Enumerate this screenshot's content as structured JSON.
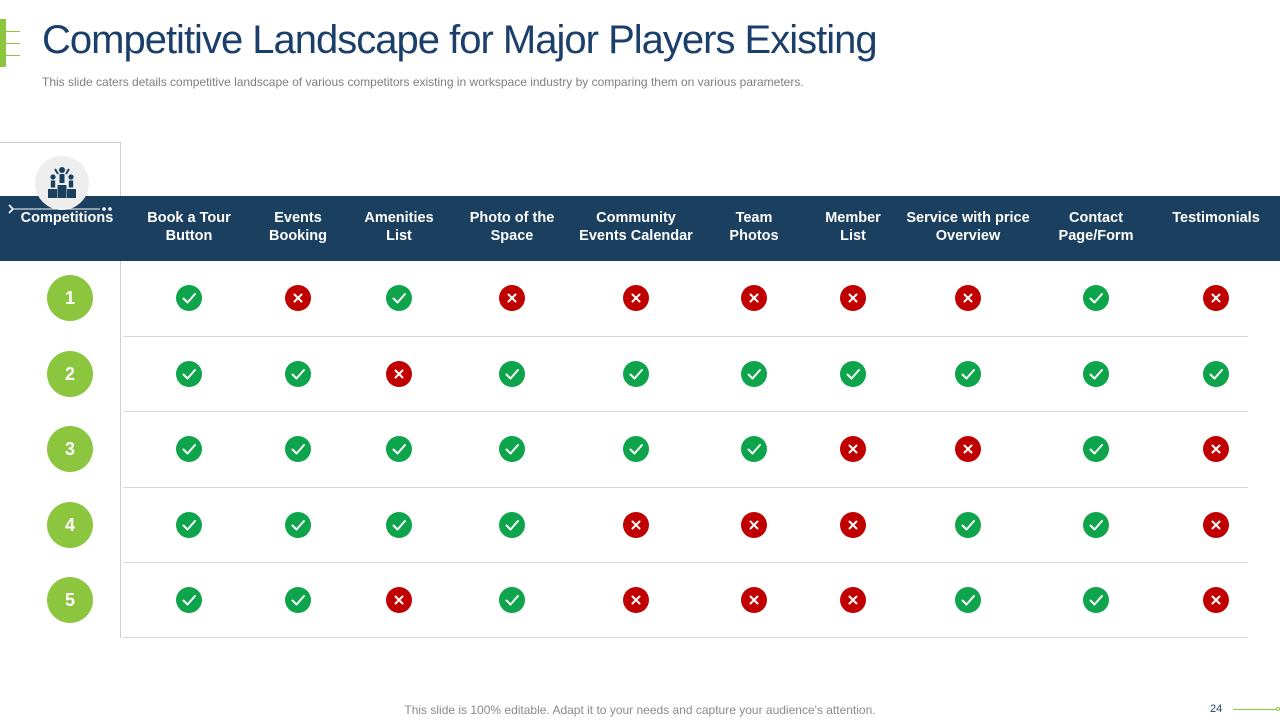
{
  "slide": {
    "title": "Competitive Landscape for Major Players Existing",
    "subtitle": "This slide caters details competitive landscape of various  competitors existing in workspace industry by comparing them on various  parameters.",
    "footer_text": "This slide is 100% editable. Adapt it to your needs and capture your audience's attention.",
    "page_number": "24"
  },
  "colors": {
    "accent_green": "#8cc63f",
    "header_navy": "#1b3f5f",
    "check_green": "#0ea44b",
    "cross_red": "#c00000"
  },
  "table": {
    "first_column_header": "Competitions",
    "columns": [
      "Book a Tour\nButton",
      "Events\nBooking",
      "Amenities\nList",
      "Photo of the\nSpace",
      "Community\nEvents Calendar",
      "Team\nPhotos",
      "Member\nList",
      "Service with price\nOverview",
      "Contact\nPage/Form",
      "Testimonials"
    ],
    "rows": [
      {
        "label": "1",
        "values": [
          true,
          false,
          true,
          false,
          false,
          false,
          false,
          false,
          true,
          false
        ]
      },
      {
        "label": "2",
        "values": [
          true,
          true,
          false,
          true,
          true,
          true,
          true,
          true,
          true,
          true
        ]
      },
      {
        "label": "3",
        "values": [
          true,
          true,
          true,
          true,
          true,
          true,
          false,
          false,
          true,
          false
        ]
      },
      {
        "label": "4",
        "values": [
          true,
          true,
          true,
          true,
          false,
          false,
          false,
          true,
          true,
          false
        ]
      },
      {
        "label": "5",
        "values": [
          true,
          true,
          false,
          true,
          false,
          false,
          false,
          true,
          true,
          false
        ]
      }
    ]
  }
}
